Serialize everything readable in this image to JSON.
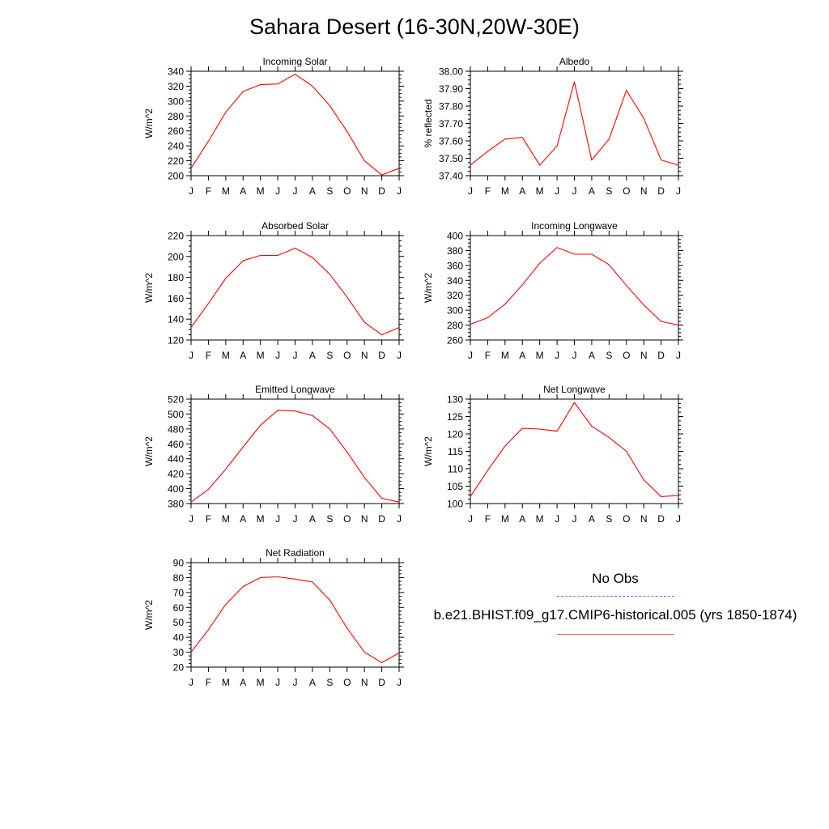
{
  "title": "Sahara Desert (16-30N,20W-30E)",
  "legend": {
    "obs_label": "No Obs",
    "obs_color": "#6a6aff",
    "model_label": "b.e21.BHIST.f09_g17.CMIP6-historical.005 (yrs 1850-1874)",
    "model_color": "#ff0000"
  },
  "chart_data": [
    {
      "type": "line",
      "title": "Incoming Solar",
      "ylabel": "W/m^2",
      "x": [
        "J",
        "F",
        "M",
        "A",
        "M",
        "J",
        "J",
        "A",
        "S",
        "O",
        "N",
        "D",
        "J"
      ],
      "ylim": [
        200,
        340
      ],
      "yticks": [
        200,
        220,
        240,
        260,
        280,
        300,
        320,
        340
      ],
      "ytick_labels": [
        "200",
        "220",
        "240",
        "260",
        "280",
        "300",
        "320",
        "340"
      ],
      "series": [
        {
          "values": [
            210,
            246,
            285,
            313,
            322,
            323,
            336,
            320,
            294,
            259,
            220,
            201,
            210
          ]
        }
      ]
    },
    {
      "type": "line",
      "title": "Albedo",
      "ylabel": "% reflected",
      "x": [
        "J",
        "F",
        "M",
        "A",
        "M",
        "J",
        "J",
        "A",
        "S",
        "O",
        "N",
        "D",
        "J"
      ],
      "ylim": [
        37.4,
        38.0
      ],
      "yticks": [
        37.4,
        37.5,
        37.6,
        37.7,
        37.8,
        37.9,
        38.0
      ],
      "ytick_labels": [
        "37.40",
        "37.50",
        "37.60",
        "37.70",
        "37.80",
        "37.90",
        "38.00"
      ],
      "series": [
        {
          "values": [
            37.46,
            37.54,
            37.61,
            37.62,
            37.46,
            37.57,
            37.94,
            37.49,
            37.61,
            37.89,
            37.73,
            37.49,
            37.46
          ]
        }
      ]
    },
    {
      "type": "line",
      "title": "Absorbed Solar",
      "ylabel": "W/m^2",
      "x": [
        "J",
        "F",
        "M",
        "A",
        "M",
        "J",
        "J",
        "A",
        "S",
        "O",
        "N",
        "D",
        "J"
      ],
      "ylim": [
        120,
        220
      ],
      "yticks": [
        120,
        140,
        160,
        180,
        200,
        220
      ],
      "ytick_labels": [
        "120",
        "140",
        "160",
        "180",
        "200",
        "220"
      ],
      "series": [
        {
          "values": [
            132,
            155,
            179,
            196,
            201,
            201,
            208,
            199,
            183,
            161,
            137,
            125,
            132
          ]
        }
      ]
    },
    {
      "type": "line",
      "title": "Incoming Longwave",
      "ylabel": "W/m^2",
      "x": [
        "J",
        "F",
        "M",
        "A",
        "M",
        "J",
        "J",
        "A",
        "S",
        "O",
        "N",
        "D",
        "J"
      ],
      "ylim": [
        260,
        400
      ],
      "yticks": [
        260,
        280,
        300,
        320,
        340,
        360,
        380,
        400
      ],
      "ytick_labels": [
        "260",
        "280",
        "300",
        "320",
        "340",
        "360",
        "380",
        "400"
      ],
      "series": [
        {
          "values": [
            281,
            290,
            308,
            334,
            363,
            384,
            375,
            375,
            361,
            333,
            307,
            285,
            280
          ]
        }
      ]
    },
    {
      "type": "line",
      "title": "Emitted Longwave",
      "ylabel": "W/m^2",
      "x": [
        "J",
        "F",
        "M",
        "A",
        "M",
        "J",
        "J",
        "A",
        "S",
        "O",
        "N",
        "D",
        "J"
      ],
      "ylim": [
        380,
        520
      ],
      "yticks": [
        380,
        400,
        420,
        440,
        460,
        480,
        500,
        520
      ],
      "ytick_labels": [
        "380",
        "400",
        "420",
        "440",
        "460",
        "480",
        "500",
        "520"
      ],
      "series": [
        {
          "values": [
            382,
            399,
            426,
            456,
            485,
            505,
            504,
            498,
            480,
            449,
            415,
            387,
            382
          ]
        }
      ]
    },
    {
      "type": "line",
      "title": "Net Longwave",
      "ylabel": "W/m^2",
      "x": [
        "J",
        "F",
        "M",
        "A",
        "M",
        "J",
        "J",
        "A",
        "S",
        "O",
        "N",
        "D",
        "J"
      ],
      "ylim": [
        100,
        130
      ],
      "yticks": [
        100,
        105,
        110,
        115,
        120,
        125,
        130
      ],
      "ytick_labels": [
        "100",
        "105",
        "110",
        "115",
        "120",
        "125",
        "130"
      ],
      "series": [
        {
          "values": [
            102,
            109.5,
            116.5,
            121.6,
            121.4,
            120.8,
            129,
            122.2,
            119,
            115,
            106.8,
            102,
            102.3
          ]
        }
      ]
    },
    {
      "type": "line",
      "title": "Net Radiation",
      "ylabel": "W/m^2",
      "x": [
        "J",
        "F",
        "M",
        "A",
        "M",
        "J",
        "J",
        "A",
        "S",
        "O",
        "N",
        "D",
        "J"
      ],
      "ylim": [
        20,
        90
      ],
      "yticks": [
        20,
        30,
        40,
        50,
        60,
        70,
        80,
        90
      ],
      "ytick_labels": [
        "20",
        "30",
        "40",
        "50",
        "60",
        "70",
        "80",
        "90"
      ],
      "series": [
        {
          "values": [
            30,
            45,
            62,
            74,
            80,
            80.5,
            79,
            77,
            65,
            46,
            30,
            23,
            29.5
          ]
        }
      ]
    }
  ]
}
